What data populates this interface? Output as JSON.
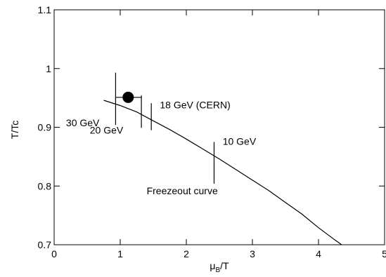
{
  "chart_data": {
    "type": "line",
    "xlabel": {
      "base": "μ",
      "sub": "B",
      "tail": "/T"
    },
    "ylabel": "T/Tc",
    "xlim": [
      0,
      5
    ],
    "ylim": [
      0.7,
      1.1
    ],
    "x_ticks": [
      "0",
      "1",
      "2",
      "3",
      "4",
      "5"
    ],
    "y_ticks": [
      "0.7",
      "0.8",
      "0.9",
      "1",
      "1.1"
    ],
    "y_tick_values": [
      0.7,
      0.8,
      0.9,
      1.0,
      1.1
    ],
    "grid": false,
    "curve": {
      "name": "Freezeout curve",
      "x": [
        0.75,
        1.0,
        1.25,
        1.5,
        1.75,
        2.0,
        2.25,
        2.5,
        2.75,
        3.0,
        3.25,
        3.5,
        3.75,
        4.0,
        4.25,
        4.35
      ],
      "y": [
        0.946,
        0.937,
        0.926,
        0.911,
        0.896,
        0.88,
        0.863,
        0.846,
        0.828,
        0.81,
        0.792,
        0.772,
        0.752,
        0.729,
        0.708,
        0.7
      ]
    },
    "vertical_markers": [
      {
        "label": "30 GeV",
        "x": 0.93,
        "y_low": 0.904,
        "y_high": 0.993
      },
      {
        "label": "20 GeV",
        "x": 1.32,
        "y_low": 0.899,
        "y_high": 0.953
      },
      {
        "label": "18 GeV (CERN)",
        "x": 1.47,
        "y_low": 0.895,
        "y_high": 0.941
      },
      {
        "label": "10 GeV",
        "x": 2.42,
        "y_low": 0.804,
        "y_high": 0.875
      }
    ],
    "point": {
      "x": 1.12,
      "y": 0.951,
      "xerr": [
        0.93,
        1.32
      ]
    },
    "annotations": [
      {
        "text": "30 GeV",
        "x": 0.18,
        "y": 0.902
      },
      {
        "text": "20 GeV",
        "x": 0.54,
        "y": 0.889
      },
      {
        "text": "18 GeV (CERN)",
        "x": 1.6,
        "y": 0.932
      },
      {
        "text": "10 GeV",
        "x": 2.55,
        "y": 0.87
      },
      {
        "text": "Freezeout curve",
        "x": 1.4,
        "y": 0.786
      }
    ]
  }
}
